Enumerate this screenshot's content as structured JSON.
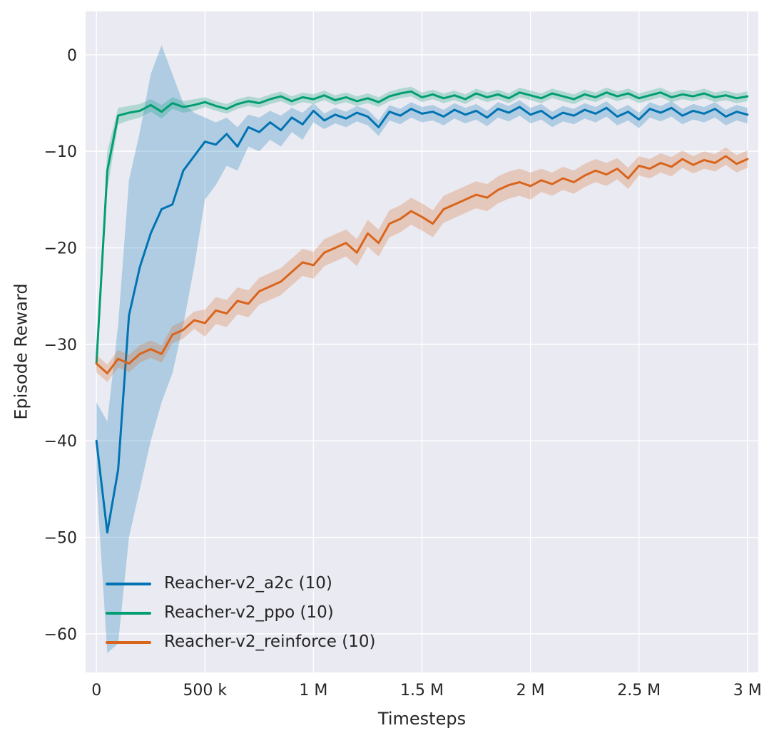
{
  "figure": {
    "bg": "#ffffff",
    "axes_bg": "#eaeaf2",
    "grid_color": "#ffffff",
    "text_color": "#262626",
    "band_alpha": 0.25,
    "line_width": 3
  },
  "chart_data": {
    "type": "line",
    "title": "",
    "xlabel": "Timesteps",
    "ylabel": "Episode Reward",
    "grid": true,
    "legend_position": "lower left",
    "xlim": [
      -50000,
      3050000
    ],
    "ylim": [
      -64,
      4.5
    ],
    "xticks": [
      {
        "v": 0,
        "label": "0"
      },
      {
        "v": 500000,
        "label": "500 k"
      },
      {
        "v": 1000000,
        "label": "1 M"
      },
      {
        "v": 1500000,
        "label": "1.5 M"
      },
      {
        "v": 2000000,
        "label": "2 M"
      },
      {
        "v": 2500000,
        "label": "2.5 M"
      },
      {
        "v": 3000000,
        "label": "3 M"
      }
    ],
    "yticks": [
      {
        "v": 0,
        "label": "0"
      },
      {
        "v": -10,
        "label": "−10"
      },
      {
        "v": -20,
        "label": "−20"
      },
      {
        "v": -30,
        "label": "−30"
      },
      {
        "v": -40,
        "label": "−40"
      },
      {
        "v": -50,
        "label": "−50"
      },
      {
        "v": -60,
        "label": "−60"
      }
    ],
    "x": [
      0,
      50000,
      100000,
      150000,
      200000,
      250000,
      300000,
      350000,
      400000,
      450000,
      500000,
      550000,
      600000,
      650000,
      700000,
      750000,
      800000,
      850000,
      900000,
      950000,
      1000000,
      1050000,
      1100000,
      1150000,
      1200000,
      1250000,
      1300000,
      1350000,
      1400000,
      1450000,
      1500000,
      1550000,
      1600000,
      1650000,
      1700000,
      1750000,
      1800000,
      1850000,
      1900000,
      1950000,
      2000000,
      2050000,
      2100000,
      2150000,
      2200000,
      2250000,
      2300000,
      2350000,
      2400000,
      2450000,
      2500000,
      2550000,
      2600000,
      2650000,
      2700000,
      2750000,
      2800000,
      2850000,
      2900000,
      2950000,
      3000000
    ],
    "series": [
      {
        "name": "Reacher-v2_a2c (10)",
        "color": "#0173b2",
        "y": [
          -40,
          -49.5,
          -43,
          -27,
          -22,
          -18.5,
          -16,
          -15.5,
          -12,
          -10.5,
          -9,
          -9.3,
          -8.2,
          -9.5,
          -7.5,
          -8,
          -7,
          -7.8,
          -6.5,
          -7.2,
          -5.8,
          -6.8,
          -6.2,
          -6.6,
          -6,
          -6.4,
          -7.5,
          -5.9,
          -6.3,
          -5.6,
          -6.1,
          -5.9,
          -6.4,
          -5.7,
          -6.2,
          -5.8,
          -6.5,
          -5.6,
          -6,
          -5.4,
          -6.2,
          -5.8,
          -6.6,
          -6,
          -6.3,
          -5.7,
          -6.1,
          -5.5,
          -6.4,
          -5.9,
          -6.7,
          -5.6,
          -6,
          -5.5,
          -6.3,
          -5.8,
          -6.1,
          -5.6,
          -6.4,
          -5.9,
          -6.2
        ],
        "lo": [
          -44,
          -62,
          -61,
          -50,
          -45,
          -40,
          -36,
          -33,
          -28,
          -22,
          -15,
          -13.5,
          -11.5,
          -12,
          -9.5,
          -10,
          -8.8,
          -9.5,
          -8,
          -8.8,
          -7,
          -7.7,
          -7.1,
          -7.5,
          -6.9,
          -7.3,
          -8.4,
          -6.8,
          -7.2,
          -6.5,
          -7,
          -6.8,
          -7.3,
          -6.6,
          -7.1,
          -6.7,
          -7.4,
          -6.5,
          -6.9,
          -6.3,
          -7.1,
          -6.7,
          -7.5,
          -6.9,
          -7.2,
          -6.6,
          -7,
          -6.4,
          -7.3,
          -6.8,
          -7.6,
          -6.5,
          -6.9,
          -6.4,
          -7.2,
          -6.7,
          -7,
          -6.5,
          -7.3,
          -6.8,
          -7.1
        ],
        "hi": [
          -36,
          -38,
          -28,
          -13,
          -8,
          -2,
          1,
          -2,
          -5,
          -6,
          -6.5,
          -7,
          -6.5,
          -7.5,
          -6.2,
          -6.5,
          -5.8,
          -6.3,
          -5.5,
          -6,
          -5,
          -6.1,
          -5.5,
          -5.9,
          -5.3,
          -5.7,
          -6.8,
          -5.2,
          -5.6,
          -4.9,
          -5.4,
          -5.2,
          -5.7,
          -5,
          -5.5,
          -5.1,
          -5.8,
          -4.9,
          -5.3,
          -4.7,
          -5.5,
          -5.1,
          -5.9,
          -5.3,
          -5.6,
          -5,
          -5.4,
          -4.8,
          -5.7,
          -5.2,
          -6,
          -4.9,
          -5.3,
          -4.8,
          -5.6,
          -5.1,
          -5.4,
          -4.9,
          -5.7,
          -5.2,
          -5.5
        ]
      },
      {
        "name": "Reacher-v2_ppo (10)",
        "color": "#029e73",
        "y": [
          -32,
          -12,
          -6.3,
          -6,
          -5.8,
          -5.2,
          -5.9,
          -5,
          -5.4,
          -5.2,
          -4.9,
          -5.3,
          -5.6,
          -5.1,
          -4.8,
          -5,
          -4.6,
          -4.3,
          -4.8,
          -4.4,
          -4.6,
          -4.2,
          -4.7,
          -4.4,
          -4.8,
          -4.5,
          -4.9,
          -4.3,
          -4,
          -3.8,
          -4.4,
          -4.1,
          -4.5,
          -4.2,
          -4.6,
          -4,
          -4.4,
          -4.1,
          -4.5,
          -3.9,
          -4.2,
          -4.5,
          -4,
          -4.3,
          -4.6,
          -4.1,
          -4.4,
          -3.9,
          -4.3,
          -4,
          -4.5,
          -4.2,
          -3.9,
          -4.4,
          -4.1,
          -4.3,
          -4,
          -4.4,
          -4.2,
          -4.5,
          -4.3
        ],
        "lo": [
          -33,
          -14,
          -7.2,
          -6.8,
          -6.5,
          -5.9,
          -6.6,
          -5.6,
          -6,
          -5.8,
          -5.4,
          -5.8,
          -6.1,
          -5.6,
          -5.3,
          -5.5,
          -5.1,
          -4.8,
          -5.3,
          -4.9,
          -5.1,
          -4.7,
          -5.2,
          -4.9,
          -5.3,
          -5,
          -5.4,
          -4.8,
          -4.5,
          -4.3,
          -4.9,
          -4.6,
          -5,
          -4.7,
          -5.1,
          -4.5,
          -4.9,
          -4.6,
          -5,
          -4.4,
          -4.7,
          -5,
          -4.5,
          -4.8,
          -5.1,
          -4.6,
          -4.9,
          -4.4,
          -4.8,
          -4.5,
          -5,
          -4.7,
          -4.4,
          -4.9,
          -4.6,
          -4.8,
          -4.5,
          -4.9,
          -4.7,
          -5,
          -4.8
        ],
        "hi": [
          -31,
          -10,
          -5.5,
          -5.3,
          -5.1,
          -4.6,
          -5.2,
          -4.4,
          -4.8,
          -4.6,
          -4.4,
          -4.8,
          -5.1,
          -4.6,
          -4.3,
          -4.5,
          -4.1,
          -3.8,
          -4.3,
          -3.9,
          -4.1,
          -3.7,
          -4.2,
          -3.9,
          -4.3,
          -4,
          -4.4,
          -3.8,
          -3.5,
          -3.3,
          -3.9,
          -3.6,
          -4,
          -3.7,
          -4.1,
          -3.5,
          -3.9,
          -3.6,
          -4,
          -3.4,
          -3.7,
          -4,
          -3.5,
          -3.8,
          -4.1,
          -3.6,
          -3.9,
          -3.4,
          -3.8,
          -3.5,
          -4,
          -3.7,
          -3.4,
          -3.9,
          -3.6,
          -3.8,
          -3.5,
          -3.9,
          -3.7,
          -4,
          -3.8
        ]
      },
      {
        "name": "Reacher-v2_reinforce (10)",
        "color": "#d9651d",
        "y": [
          -32,
          -33,
          -31.5,
          -32,
          -31,
          -30.5,
          -31,
          -29,
          -28.5,
          -27.5,
          -27.8,
          -26.5,
          -26.8,
          -25.5,
          -25.8,
          -24.5,
          -24,
          -23.5,
          -22.5,
          -21.5,
          -21.8,
          -20.5,
          -20,
          -19.5,
          -20.5,
          -18.5,
          -19.5,
          -17.5,
          -17,
          -16.2,
          -16.8,
          -17.5,
          -16,
          -15.5,
          -15,
          -14.5,
          -14.8,
          -14,
          -13.5,
          -13.2,
          -13.6,
          -13,
          -13.4,
          -12.8,
          -13.2,
          -12.5,
          -12,
          -12.4,
          -11.8,
          -12.8,
          -11.5,
          -11.8,
          -11.2,
          -11.6,
          -10.8,
          -11.4,
          -10.9,
          -11.2,
          -10.5,
          -11.3,
          -10.8
        ],
        "lo": [
          -32.9,
          -33.9,
          -32.4,
          -32.9,
          -31.9,
          -31.4,
          -31.9,
          -29.9,
          -29.4,
          -28.4,
          -29.2,
          -27.9,
          -28.2,
          -26.9,
          -27.2,
          -25.9,
          -25.4,
          -24.9,
          -23.9,
          -22.9,
          -23.2,
          -21.9,
          -21.4,
          -20.9,
          -21.9,
          -19.9,
          -20.9,
          -18.9,
          -18.4,
          -17.6,
          -18.2,
          -18.9,
          -17.4,
          -16.9,
          -16.4,
          -15.9,
          -16.2,
          -15.4,
          -14.9,
          -14.6,
          -15,
          -14.2,
          -14.6,
          -14,
          -14.4,
          -13.7,
          -13.2,
          -13.6,
          -12.9,
          -13.9,
          -12.5,
          -12.8,
          -12.2,
          -12.6,
          -11.7,
          -12.3,
          -11.8,
          -12.1,
          -11.4,
          -12.2,
          -11.7
        ],
        "hi": [
          -31.1,
          -32.1,
          -30.6,
          -31.1,
          -30.1,
          -29.6,
          -30.1,
          -28.1,
          -27.6,
          -26.6,
          -26.4,
          -25.1,
          -25.4,
          -24.1,
          -24.4,
          -23.1,
          -22.6,
          -22.1,
          -21.1,
          -20.1,
          -20.4,
          -19.1,
          -18.6,
          -18.1,
          -19.1,
          -17.1,
          -18.1,
          -16.1,
          -15.6,
          -14.8,
          -15.4,
          -16.1,
          -14.6,
          -14.1,
          -13.6,
          -13.1,
          -13.4,
          -12.6,
          -12.1,
          -11.8,
          -12.2,
          -11.8,
          -12.2,
          -11.6,
          -12,
          -11.3,
          -10.8,
          -11.2,
          -10.7,
          -11.7,
          -10.5,
          -10.8,
          -10.2,
          -10.6,
          -9.9,
          -10.5,
          -10,
          -10.3,
          -9.6,
          -10.4,
          -9.9
        ]
      }
    ]
  },
  "legend": {
    "items": [
      {
        "label": "Reacher-v2_a2c (10)"
      },
      {
        "label": "Reacher-v2_ppo (10)"
      },
      {
        "label": "Reacher-v2_reinforce (10)"
      }
    ]
  }
}
